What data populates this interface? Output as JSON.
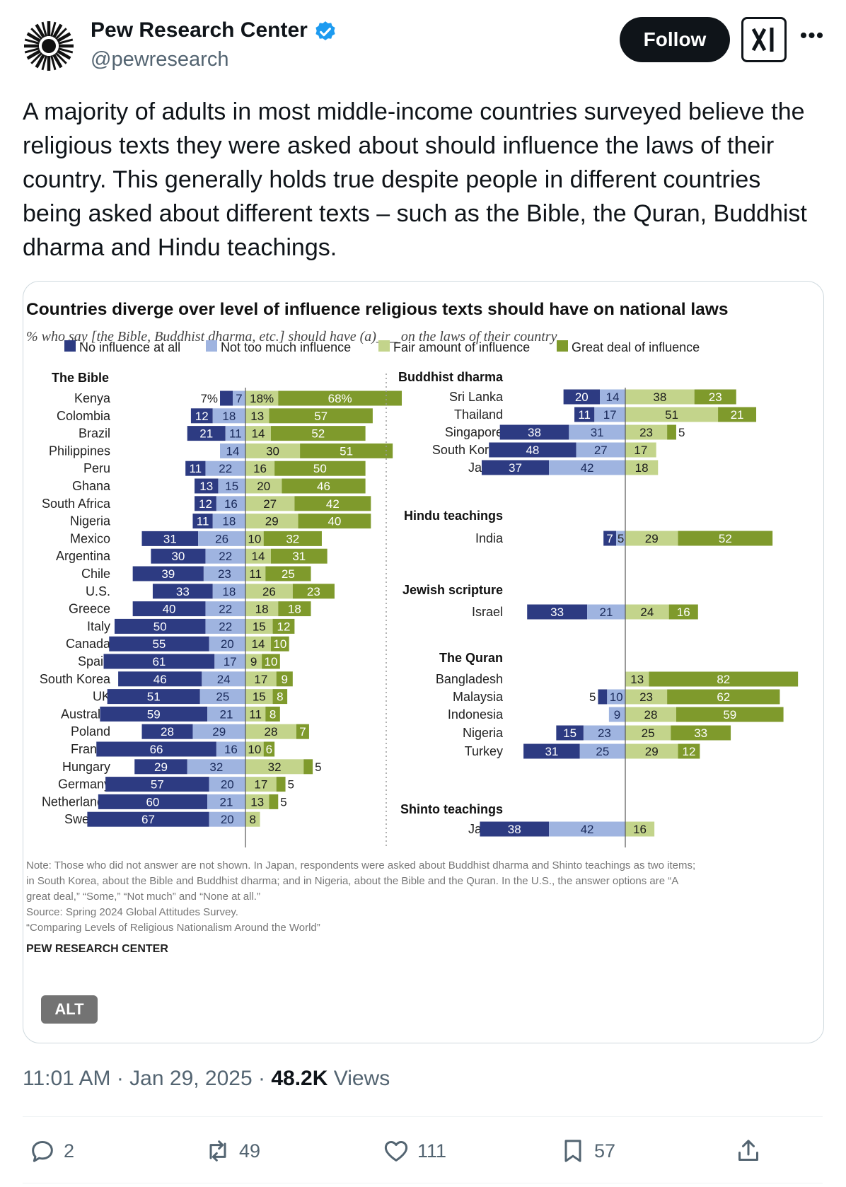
{
  "author": {
    "name": "Pew Research Center",
    "handle": "@pewresearch",
    "follow_label": "Follow",
    "verified_icon": "verified-badge-icon",
    "grok_icon": "grok-icon",
    "more_icon": "more-icon"
  },
  "tweet": {
    "text": "A majority of adults in most middle-income countries surveyed believe the religious texts they were asked about should influence the laws of their country. This generally holds true despite people in different countries being asked about different texts – such as the Bible, the Quran, Buddhist dharma and Hindu teachings."
  },
  "media": {
    "alt_label": "ALT"
  },
  "meta": {
    "time": "11:01 AM · Jan 29, 2025 · ",
    "views_count": "48.2K",
    "views_label": " Views"
  },
  "actions": {
    "replies": "2",
    "reposts": "49",
    "likes": "111",
    "bookmarks": "57"
  },
  "colors": {
    "no_influence": "#2d3b82",
    "not_much": "#9fb4e0",
    "fair": "#c3d48b",
    "great": "#7f9a2c",
    "accent": "#1d9bf0"
  },
  "chart_data": {
    "type": "bar",
    "stacked": "diverging",
    "title": "Countries diverge over level of influence religious texts should have on national laws",
    "subtitle": "% who say [the Bible, Buddhist dharma, etc.] should have (a)___ on the laws of their country",
    "legend": [
      "No influence at all",
      "Not too much influence",
      "Fair amount of influence",
      "Great deal of influence"
    ],
    "left_group": {
      "title": "The Bible",
      "rows": [
        {
          "label": "Kenya",
          "values": [
            7,
            7,
            18,
            68
          ],
          "texts": [
            "7%",
            "7",
            "18%",
            "68%"
          ]
        },
        {
          "label": "Colombia",
          "values": [
            12,
            18,
            13,
            57
          ]
        },
        {
          "label": "Brazil",
          "values": [
            21,
            11,
            14,
            52
          ]
        },
        {
          "label": "Philippines",
          "values": [
            null,
            14,
            30,
            51
          ]
        },
        {
          "label": "Peru",
          "values": [
            11,
            22,
            16,
            50
          ]
        },
        {
          "label": "Ghana",
          "values": [
            13,
            15,
            20,
            46
          ]
        },
        {
          "label": "South Africa",
          "values": [
            12,
            16,
            27,
            42
          ]
        },
        {
          "label": "Nigeria",
          "values": [
            11,
            18,
            29,
            40
          ]
        },
        {
          "label": "Mexico",
          "values": [
            31,
            26,
            10,
            32
          ]
        },
        {
          "label": "Argentina",
          "values": [
            30,
            22,
            14,
            31
          ]
        },
        {
          "label": "Chile",
          "values": [
            39,
            23,
            11,
            25
          ]
        },
        {
          "label": "U.S.",
          "values": [
            33,
            18,
            26,
            23
          ]
        },
        {
          "label": "Greece",
          "values": [
            40,
            22,
            18,
            18
          ]
        },
        {
          "label": "Italy",
          "values": [
            50,
            22,
            15,
            12
          ]
        },
        {
          "label": "Canada",
          "values": [
            55,
            20,
            14,
            10
          ]
        },
        {
          "label": "Spain",
          "values": [
            61,
            17,
            9,
            10
          ]
        },
        {
          "label": "South Korea",
          "values": [
            46,
            24,
            17,
            9
          ]
        },
        {
          "label": "UK",
          "values": [
            51,
            25,
            15,
            8
          ]
        },
        {
          "label": "Australia",
          "values": [
            59,
            21,
            11,
            8
          ]
        },
        {
          "label": "Poland",
          "values": [
            28,
            29,
            28,
            7
          ]
        },
        {
          "label": "France",
          "values": [
            66,
            16,
            10,
            6
          ]
        },
        {
          "label": "Hungary",
          "values": [
            29,
            32,
            32,
            5
          ]
        },
        {
          "label": "Germany",
          "values": [
            57,
            20,
            17,
            5
          ]
        },
        {
          "label": "Netherlands",
          "values": [
            60,
            21,
            13,
            5
          ]
        },
        {
          "label": "Sweden",
          "values": [
            67,
            20,
            8,
            null
          ]
        }
      ]
    },
    "right_groups": [
      {
        "title": "Buddhist dharma",
        "rows": [
          {
            "label": "Sri Lanka",
            "values": [
              20,
              14,
              38,
              23
            ]
          },
          {
            "label": "Thailand",
            "values": [
              11,
              17,
              51,
              21
            ]
          },
          {
            "label": "Singapore",
            "values": [
              38,
              31,
              23,
              5
            ]
          },
          {
            "label": "South Korea",
            "values": [
              48,
              27,
              17,
              null
            ]
          },
          {
            "label": "Japan",
            "values": [
              37,
              42,
              18,
              null
            ]
          }
        ]
      },
      {
        "title": "Hindu teachings",
        "rows": [
          {
            "label": "India",
            "values": [
              7,
              5,
              29,
              52
            ]
          }
        ]
      },
      {
        "title": "Jewish scripture",
        "rows": [
          {
            "label": "Israel",
            "values": [
              33,
              21,
              24,
              16
            ]
          }
        ]
      },
      {
        "title": "The Quran",
        "rows": [
          {
            "label": "Bangladesh",
            "values": [
              null,
              null,
              13,
              82
            ]
          },
          {
            "label": "Malaysia",
            "values": [
              5,
              10,
              23,
              62
            ]
          },
          {
            "label": "Indonesia",
            "values": [
              null,
              9,
              28,
              59
            ]
          },
          {
            "label": "Nigeria",
            "values": [
              15,
              23,
              25,
              33
            ]
          },
          {
            "label": "Turkey",
            "values": [
              31,
              25,
              29,
              12
            ]
          }
        ]
      },
      {
        "title": "Shinto teachings",
        "rows": [
          {
            "label": "Japan",
            "values": [
              38,
              42,
              16,
              null
            ]
          }
        ]
      }
    ],
    "notes": [
      "Note: Those who did not answer are not shown. In Japan, respondents were asked about Buddhist dharma and Shinto teachings as two items;",
      "in South Korea, about the Bible and Buddhist dharma; and in Nigeria, about the Bible and the Quran. In the U.S., the answer options are “A",
      "great deal,” “Some,” “Not much” and “None at all.”",
      "Source: Spring 2024 Global Attitudes Survey.",
      "“Comparing Levels of Religious Nationalism Around the World”"
    ],
    "credit": "PEW RESEARCH CENTER"
  }
}
